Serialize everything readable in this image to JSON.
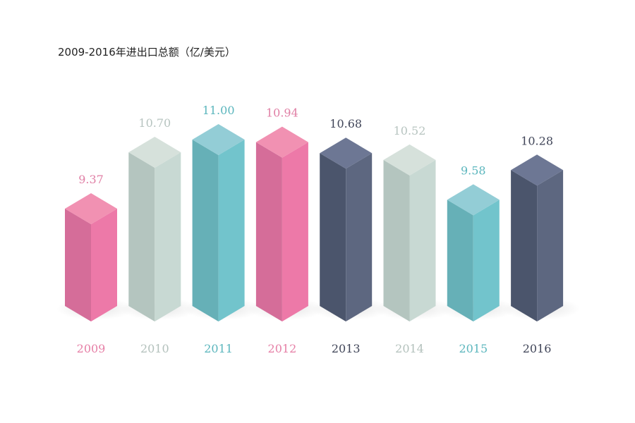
{
  "chart_data": {
    "type": "bar",
    "title": "2009-2016年进出口总额（亿/美元）",
    "categories": [
      "2009",
      "2010",
      "2011",
      "2012",
      "2013",
      "2014",
      "2015",
      "2016"
    ],
    "values": [
      9.37,
      10.7,
      11.0,
      10.94,
      10.68,
      10.52,
      9.58,
      10.28
    ],
    "value_labels": [
      "9.37",
      "10.70",
      "11.00",
      "10.94",
      "10.68",
      "10.52",
      "9.58",
      "10.28"
    ],
    "xlabel": "",
    "ylabel": "",
    "grid": false,
    "legend": "none",
    "palette": [
      "pink",
      "sage",
      "teal",
      "pink",
      "navy",
      "sage",
      "teal",
      "navy"
    ]
  },
  "colors": {
    "pink": {
      "top": "#f191b2",
      "left": "#d56d99",
      "right": "#ed79a8",
      "label": "#e67fa6",
      "val": "#e07fa5"
    },
    "sage": {
      "top": "#d6e1db",
      "left": "#b4c5bf",
      "right": "#c8d9d3",
      "label": "#b3c1bc",
      "val": "#b7c4c0"
    },
    "teal": {
      "top": "#93cdd6",
      "left": "#66b0b7",
      "right": "#72c4cc",
      "label": "#5bb6bd",
      "val": "#5bb6bd"
    },
    "navy": {
      "top": "#6d7794",
      "left": "#4b556c",
      "right": "#5d6780",
      "label": "#404558",
      "val": "#404558"
    }
  }
}
